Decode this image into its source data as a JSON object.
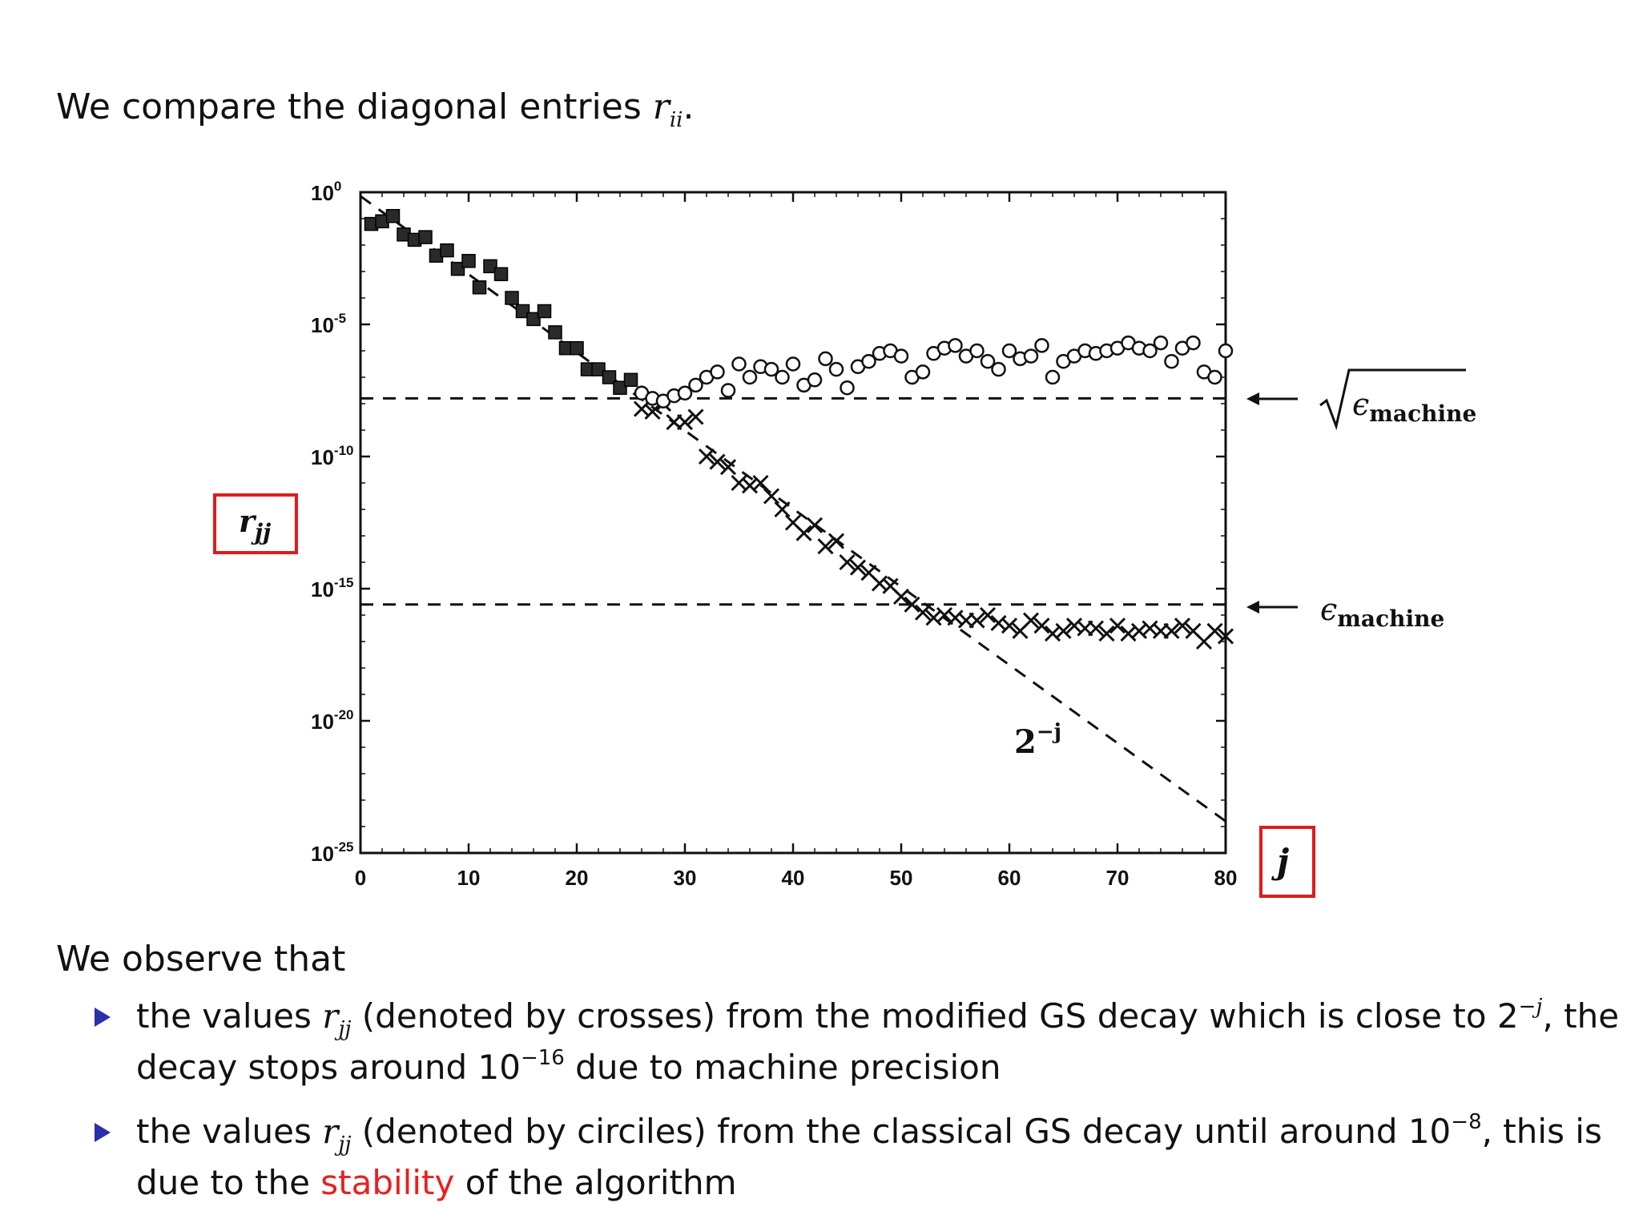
{
  "intro": {
    "text_before": "We compare the diagonal entries ",
    "symbol_r": "r",
    "symbol_sub": "ii",
    "text_after": "."
  },
  "chart_data": {
    "type": "scatter",
    "title": "",
    "xlabel": "j",
    "ylabel": "r_jj",
    "y_scale": "log",
    "xlim": [
      0,
      80
    ],
    "ylim_exponent": [
      -25,
      0
    ],
    "x_ticks": [
      "0",
      "10",
      "20",
      "30",
      "40",
      "50",
      "60",
      "70",
      "80"
    ],
    "y_ticks": [
      {
        "base": "10",
        "exp": "0",
        "e": 0
      },
      {
        "base": "10",
        "exp": "-5",
        "e": -5
      },
      {
        "base": "10",
        "exp": "-10",
        "e": -10
      },
      {
        "base": "10",
        "exp": "-15",
        "e": -15
      },
      {
        "base": "10",
        "exp": "-20",
        "e": -20
      },
      {
        "base": "10",
        "exp": "-25",
        "e": -25
      }
    ],
    "grid": false,
    "reference_lines": [
      {
        "label": "2⁻ʲ",
        "style": "dashed",
        "from": {
          "x": 0,
          "y_exp": -0.15
        },
        "to": {
          "x": 80,
          "y_exp": -23.8
        }
      },
      {
        "label": "√ϵmachine",
        "label_symbol": "ϵ",
        "label_subscript": "machine",
        "style": "dashed",
        "y_exp": -7.8
      },
      {
        "label": "ϵmachine",
        "label_symbol": "ϵ",
        "label_subscript": "machine",
        "style": "dashed",
        "y_exp": -15.6
      }
    ],
    "series": [
      {
        "marker": "filled-square",
        "points": [
          [
            1,
            -1.2
          ],
          [
            2,
            -1.1
          ],
          [
            3,
            -0.9
          ],
          [
            4,
            -1.6
          ],
          [
            5,
            -1.8
          ],
          [
            6,
            -1.7
          ],
          [
            7,
            -2.4
          ],
          [
            8,
            -2.2
          ],
          [
            9,
            -2.9
          ],
          [
            10,
            -2.6
          ],
          [
            11,
            -3.6
          ],
          [
            12,
            -2.8
          ],
          [
            13,
            -3.1
          ],
          [
            14,
            -4.0
          ],
          [
            15,
            -4.5
          ],
          [
            16,
            -4.8
          ],
          [
            17,
            -4.5
          ],
          [
            18,
            -5.3
          ],
          [
            19,
            -5.9
          ],
          [
            20,
            -5.9
          ],
          [
            21,
            -6.7
          ],
          [
            22,
            -6.7
          ],
          [
            23,
            -7.0
          ],
          [
            24,
            -7.4
          ],
          [
            25,
            -7.1
          ]
        ]
      },
      {
        "marker": "cross",
        "points": [
          [
            26,
            -8.2
          ],
          [
            27,
            -8.3
          ],
          [
            28,
            -8.0
          ],
          [
            29,
            -8.7
          ],
          [
            30,
            -8.7
          ],
          [
            31,
            -8.5
          ],
          [
            32,
            -10.0
          ],
          [
            33,
            -10.2
          ],
          [
            34,
            -10.4
          ],
          [
            35,
            -11.0
          ],
          [
            36,
            -11.1
          ],
          [
            37,
            -11.0
          ],
          [
            38,
            -11.5
          ],
          [
            39,
            -12.0
          ],
          [
            40,
            -12.5
          ],
          [
            41,
            -12.9
          ],
          [
            42,
            -12.6
          ],
          [
            43,
            -13.4
          ],
          [
            44,
            -13.2
          ],
          [
            45,
            -14.0
          ],
          [
            46,
            -14.2
          ],
          [
            47,
            -14.4
          ],
          [
            48,
            -14.8
          ],
          [
            49,
            -14.9
          ],
          [
            50,
            -15.3
          ],
          [
            51,
            -15.6
          ],
          [
            52,
            -15.9
          ],
          [
            53,
            -16.1
          ],
          [
            54,
            -16.0
          ],
          [
            55,
            -16.1
          ],
          [
            56,
            -16.2
          ],
          [
            57,
            -16.2
          ],
          [
            58,
            -16.0
          ],
          [
            59,
            -16.3
          ],
          [
            60,
            -16.4
          ],
          [
            61,
            -16.6
          ],
          [
            62,
            -16.2
          ],
          [
            63,
            -16.4
          ],
          [
            64,
            -16.7
          ],
          [
            65,
            -16.6
          ],
          [
            66,
            -16.4
          ],
          [
            67,
            -16.5
          ],
          [
            68,
            -16.5
          ],
          [
            69,
            -16.7
          ],
          [
            70,
            -16.4
          ],
          [
            71,
            -16.7
          ],
          [
            72,
            -16.6
          ],
          [
            73,
            -16.5
          ],
          [
            74,
            -16.6
          ],
          [
            75,
            -16.6
          ],
          [
            76,
            -16.4
          ],
          [
            77,
            -16.6
          ],
          [
            78,
            -17.0
          ],
          [
            79,
            -16.6
          ],
          [
            80,
            -16.8
          ]
        ]
      },
      {
        "marker": "open-circle",
        "points": [
          [
            26,
            -7.6
          ],
          [
            27,
            -7.8
          ],
          [
            28,
            -7.9
          ],
          [
            29,
            -7.7
          ],
          [
            30,
            -7.6
          ],
          [
            31,
            -7.3
          ],
          [
            32,
            -7.0
          ],
          [
            33,
            -6.8
          ],
          [
            34,
            -7.5
          ],
          [
            35,
            -6.5
          ],
          [
            36,
            -7.0
          ],
          [
            37,
            -6.6
          ],
          [
            38,
            -6.7
          ],
          [
            39,
            -7.0
          ],
          [
            40,
            -6.5
          ],
          [
            41,
            -7.3
          ],
          [
            42,
            -7.1
          ],
          [
            43,
            -6.3
          ],
          [
            44,
            -6.7
          ],
          [
            45,
            -7.4
          ],
          [
            46,
            -6.6
          ],
          [
            47,
            -6.4
          ],
          [
            48,
            -6.1
          ],
          [
            49,
            -6.0
          ],
          [
            50,
            -6.2
          ],
          [
            51,
            -7.0
          ],
          [
            52,
            -6.8
          ],
          [
            53,
            -6.1
          ],
          [
            54,
            -5.9
          ],
          [
            55,
            -5.8
          ],
          [
            56,
            -6.2
          ],
          [
            57,
            -6.0
          ],
          [
            58,
            -6.4
          ],
          [
            59,
            -6.7
          ],
          [
            60,
            -6.0
          ],
          [
            61,
            -6.3
          ],
          [
            62,
            -6.2
          ],
          [
            63,
            -5.8
          ],
          [
            64,
            -7.0
          ],
          [
            65,
            -6.4
          ],
          [
            66,
            -6.2
          ],
          [
            67,
            -6.0
          ],
          [
            68,
            -6.1
          ],
          [
            69,
            -6.0
          ],
          [
            70,
            -5.9
          ],
          [
            71,
            -5.7
          ],
          [
            72,
            -5.9
          ],
          [
            73,
            -6.0
          ],
          [
            74,
            -5.7
          ],
          [
            75,
            -6.4
          ],
          [
            76,
            -5.9
          ],
          [
            77,
            -5.7
          ],
          [
            78,
            -6.8
          ],
          [
            79,
            -7.0
          ],
          [
            80,
            -6.0
          ]
        ]
      }
    ]
  },
  "observe_heading": "We observe that",
  "bullets": [
    {
      "part1": "the values ",
      "r": "r",
      "sub": "jj",
      "part2": " (denoted by crosses) from the modified GS decay which is close to 2",
      "sup1": "−j",
      "part3": ", the decay stops around 10",
      "sup2": "−16",
      "part4": " due to machine precision"
    },
    {
      "part1": "the values ",
      "r": "r",
      "sub": "jj",
      "part2": " (denoted by circiles) from the classical GS decay until around 10",
      "sup1": "−8",
      "part3": ", this is due to the ",
      "highlight": "stability",
      "part4": " of the algorithm"
    }
  ]
}
